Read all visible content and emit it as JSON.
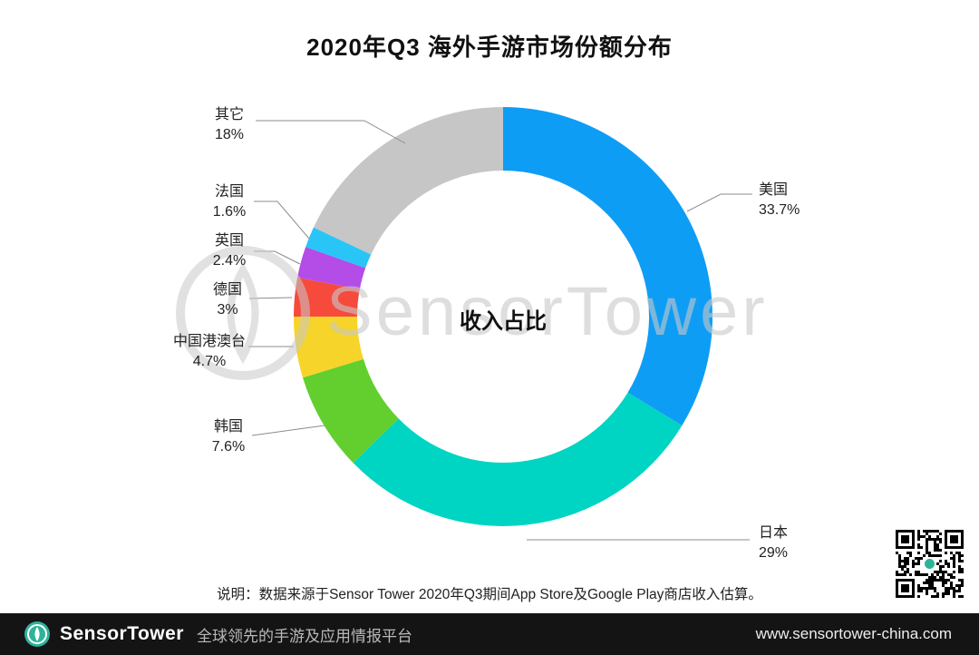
{
  "title": "2020年Q3 海外手游市场份额分布",
  "chart_data": {
    "type": "pie",
    "subtype": "donut",
    "title": "2020年Q3 海外手游市场份额分布",
    "center_label": "收入占比",
    "unit": "%",
    "start_angle_deg": 0,
    "direction": "clockwise",
    "slices": [
      {
        "label": "美国",
        "value": 33.7,
        "display": "33.7%",
        "color": "#0e9df5"
      },
      {
        "label": "日本",
        "value": 29,
        "display": "29%",
        "color": "#00d4c2"
      },
      {
        "label": "韩国",
        "value": 7.6,
        "display": "7.6%",
        "color": "#62cf2e"
      },
      {
        "label": "中国港澳台",
        "value": 4.7,
        "display": "4.7%",
        "color": "#f6d42a"
      },
      {
        "label": "德国",
        "value": 3,
        "display": "3%",
        "color": "#f64a3d"
      },
      {
        "label": "英国",
        "value": 2.4,
        "display": "2.4%",
        "color": "#b44ce8"
      },
      {
        "label": "法国",
        "value": 1.6,
        "display": "1.6%",
        "color": "#29c5f6"
      },
      {
        "label": "其它",
        "value": 18,
        "display": "18%",
        "color": "#c6c6c6"
      }
    ]
  },
  "watermark": {
    "text": "SensorTower"
  },
  "note": "说明：数据来源于Sensor Tower 2020年Q3期间App Store及Google Play商店收入估算。",
  "footer": {
    "brand": "SensorTower",
    "tagline": "全球领先的手游及应用情报平台",
    "website": "www.sensortower-china.com"
  },
  "icons": {
    "footer_logo": "sensor-tower-logo",
    "watermark_logo": "sensor-tower-logo-watermark",
    "qr": "qr-code"
  }
}
